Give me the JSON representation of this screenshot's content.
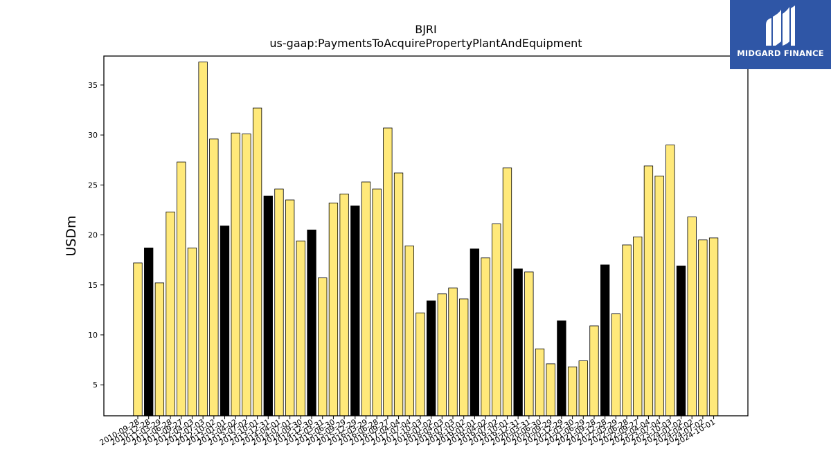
{
  "chart_data": {
    "type": "bar",
    "title": "BJRI",
    "subtitle": "us-gaap:PaymentsToAcquirePropertyPlantAndEquipment",
    "ylabel": "USDm",
    "xlabel": "",
    "ylim": [
      1.9,
      37.9
    ],
    "yticks": [
      5,
      10,
      15,
      20,
      25,
      30,
      35
    ],
    "categories": [
      "2010-09-28",
      "2010-12-28",
      "2011-03-29",
      "2011-06-28",
      "2011-09-27",
      "2012-04-03",
      "2012-07-03",
      "2012-10-02",
      "2013-01-01",
      "2013-04-02",
      "2013-07-02",
      "2013-10-01",
      "2013-12-31",
      "2014-04-01",
      "2014-07-01",
      "2014-09-30",
      "2014-12-30",
      "2015-03-31",
      "2015-06-30",
      "2015-09-29",
      "2015-12-29",
      "2016-03-29",
      "2016-06-28",
      "2016-09-27",
      "2017-04-04",
      "2017-07-04",
      "2017-10-03",
      "2018-01-02",
      "2018-04-03",
      "2018-07-03",
      "2018-10-02",
      "2019-01-01",
      "2019-04-02",
      "2019-07-02",
      "2019-10-01",
      "2019-12-31",
      "2020-03-31",
      "2020-06-30",
      "2020-09-29",
      "2020-12-29",
      "2021-03-30",
      "2021-06-29",
      "2021-09-28",
      "2021-12-28",
      "2022-03-29",
      "2022-06-28",
      "2022-09-27",
      "2023-04-04",
      "2023-07-04",
      "2023-10-03",
      "2024-01-02",
      "2024-04-02",
      "2024-07-02",
      "2024-10-01"
    ],
    "values": [
      17.2,
      18.7,
      15.2,
      22.3,
      27.3,
      18.7,
      37.3,
      29.6,
      20.9,
      30.2,
      30.1,
      32.7,
      23.9,
      24.6,
      23.5,
      19.4,
      20.5,
      15.7,
      23.2,
      24.1,
      22.9,
      25.3,
      24.6,
      30.7,
      26.2,
      18.9,
      12.2,
      13.4,
      14.1,
      14.7,
      13.6,
      18.6,
      17.7,
      21.1,
      26.7,
      16.6,
      16.3,
      8.6,
      7.1,
      11.4,
      6.8,
      7.4,
      10.9,
      17.0,
      12.1,
      19.0,
      19.8,
      26.9,
      25.9,
      29.0,
      16.9,
      21.8,
      19.5,
      19.7
    ],
    "highlight": [
      false,
      true,
      false,
      false,
      false,
      false,
      false,
      false,
      true,
      false,
      false,
      false,
      true,
      false,
      false,
      false,
      true,
      false,
      false,
      false,
      true,
      false,
      false,
      false,
      false,
      false,
      false,
      true,
      false,
      false,
      false,
      true,
      false,
      false,
      false,
      true,
      false,
      false,
      false,
      true,
      false,
      false,
      false,
      true,
      false,
      false,
      false,
      false,
      false,
      false,
      true,
      false,
      false,
      false
    ],
    "colors": {
      "bar": "#ffe97a",
      "highlight": "#000000",
      "edge": "#000000"
    },
    "grid": false,
    "legend": "none"
  },
  "logo": {
    "text": "MIDGARD FINANCE",
    "color": "#2f56a6",
    "icon": "midgard-logo-icon"
  }
}
